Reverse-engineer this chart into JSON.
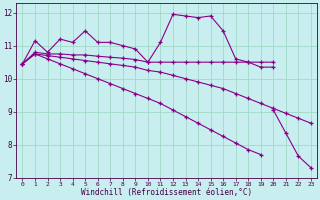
{
  "background_color": "#c8eef0",
  "grid_color": "#a0d8c8",
  "line_color": "#880088",
  "xlabel": "Windchill (Refroidissement éolien,°C)",
  "xlim": [
    -0.5,
    23.5
  ],
  "ylim": [
    7,
    12.3
  ],
  "yticks": [
    7,
    8,
    9,
    10,
    11,
    12
  ],
  "xticks": [
    0,
    1,
    2,
    3,
    4,
    5,
    6,
    7,
    8,
    9,
    10,
    11,
    12,
    13,
    14,
    15,
    16,
    17,
    18,
    19,
    20,
    21,
    22,
    23
  ],
  "series1": [
    10.45,
    11.15,
    10.8,
    11.2,
    11.1,
    11.45,
    11.1,
    11.1,
    11.0,
    10.9,
    10.5,
    11.1,
    11.95,
    11.9,
    11.85,
    11.9,
    11.45,
    10.6,
    10.5,
    10.35,
    10.35,
    null,
    null,
    null
  ],
  "series2": [
    10.45,
    10.8,
    10.75,
    10.75,
    10.72,
    10.72,
    10.68,
    10.65,
    10.62,
    10.58,
    10.5,
    10.5,
    10.5,
    10.5,
    10.5,
    10.5,
    10.5,
    10.5,
    10.5,
    10.5,
    10.5,
    null,
    null,
    null
  ],
  "series3": [
    10.45,
    10.75,
    10.7,
    10.65,
    10.6,
    10.55,
    10.5,
    10.45,
    10.4,
    10.35,
    10.25,
    10.2,
    10.1,
    10.0,
    9.9,
    9.8,
    9.7,
    9.55,
    9.4,
    9.25,
    9.1,
    8.95,
    8.8,
    8.65
  ],
  "series4": [
    10.45,
    10.75,
    10.6,
    10.45,
    10.3,
    10.15,
    10.0,
    9.85,
    9.7,
    9.55,
    9.4,
    9.25,
    9.05,
    8.85,
    8.65,
    8.45,
    8.25,
    8.05,
    7.85,
    7.7,
    null,
    null,
    null,
    null
  ],
  "series5": [
    null,
    null,
    null,
    null,
    null,
    null,
    null,
    null,
    null,
    null,
    null,
    null,
    null,
    null,
    null,
    null,
    null,
    null,
    null,
    null,
    9.05,
    8.35,
    7.65,
    7.3
  ]
}
